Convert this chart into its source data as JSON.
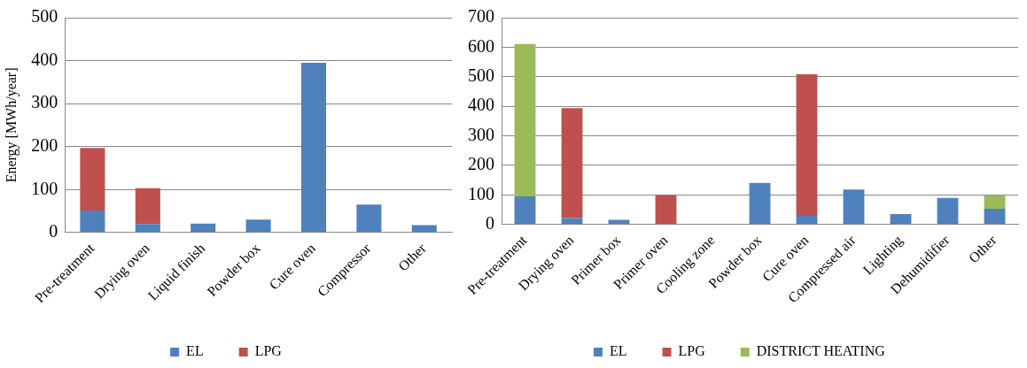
{
  "chart_data": [
    {
      "type": "bar",
      "ylabel": "Energy [MWh/year]",
      "categories": [
        "Pre-treatment",
        "Drying oven",
        "Liquid finish",
        "Powder box",
        "Cure oven",
        "Compressor",
        "Other"
      ],
      "stacked": true,
      "ylim": [
        0,
        500
      ],
      "yticks": [
        0,
        100,
        200,
        300,
        400,
        500
      ],
      "grid": "y",
      "legend": "bottom",
      "series": [
        {
          "name": "EL",
          "color": "#4f81bd",
          "values": [
            51,
            20,
            21,
            30,
            395,
            65,
            17
          ]
        },
        {
          "name": "LPG",
          "color": "#c0504d",
          "values": [
            146,
            83,
            null,
            null,
            null,
            null,
            null
          ]
        }
      ]
    },
    {
      "type": "bar",
      "categories": [
        "Pre-treatment",
        "Drying oven",
        "Primer box",
        "Primer oven",
        "Cooling zone",
        "Powder box",
        "Cure oven",
        "Compressed air",
        "Lighting",
        "Dehumidifier",
        "Other"
      ],
      "stacked": true,
      "ylim": [
        0,
        700
      ],
      "yticks": [
        0,
        100,
        200,
        300,
        400,
        500,
        600,
        700
      ],
      "grid": "y",
      "legend": "bottom",
      "series": [
        {
          "name": "EL",
          "color": "#4f81bd",
          "values": [
            95,
            22,
            16,
            null,
            null,
            141,
            29,
            118,
            35,
            90,
            53
          ]
        },
        {
          "name": "LPG",
          "color": "#c0504d",
          "values": [
            null,
            372,
            null,
            99,
            null,
            null,
            479,
            null,
            null,
            null,
            null
          ]
        },
        {
          "name": "DISTRICT HEATING",
          "color": "#9bbb59",
          "values": [
            516,
            null,
            null,
            null,
            null,
            null,
            null,
            null,
            null,
            null,
            46
          ]
        }
      ]
    }
  ]
}
